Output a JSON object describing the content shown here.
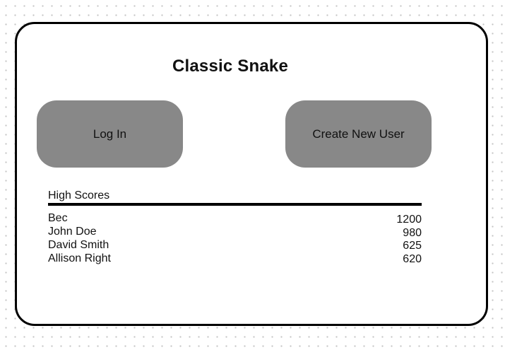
{
  "app": {
    "title": "Classic Snake"
  },
  "actions": {
    "login_label": "Log In",
    "create_user_label": "Create New User"
  },
  "high_scores": {
    "heading": "High Scores",
    "entries": [
      {
        "name": "Bec",
        "score": "1200"
      },
      {
        "name": "John Doe",
        "score": "980"
      },
      {
        "name": "David Smith",
        "score": "625"
      },
      {
        "name": "Allison Right",
        "score": "620"
      }
    ]
  },
  "colors": {
    "button_fill": "#888888",
    "frame_border": "#000000",
    "background": "#ffffff",
    "text": "#111111"
  }
}
